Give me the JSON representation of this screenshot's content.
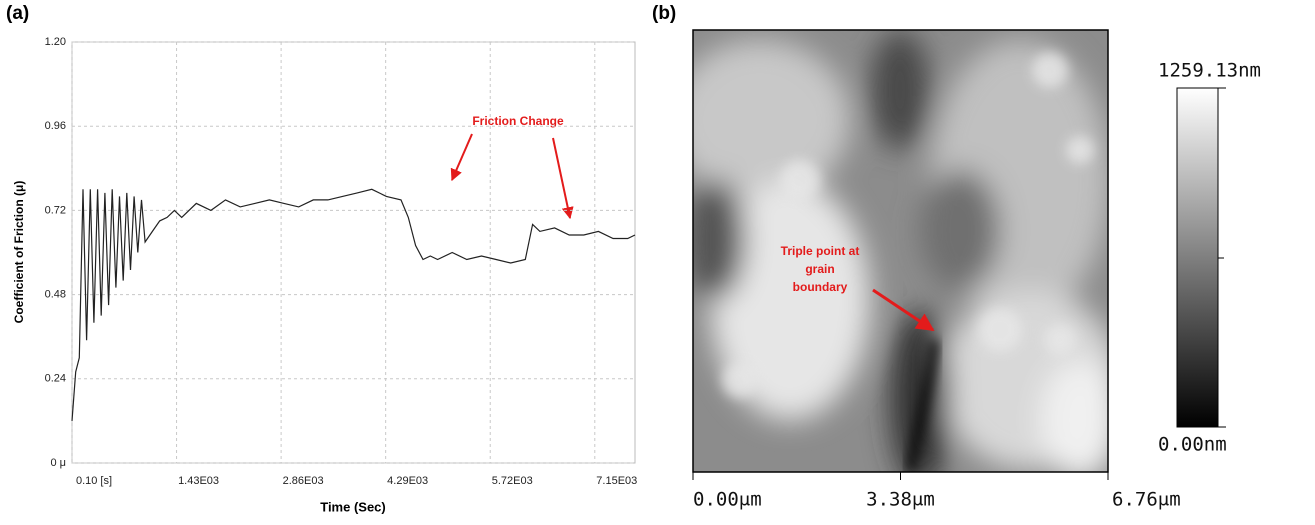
{
  "chart_data": [
    {
      "type": "line",
      "panel": "(a)",
      "x_label": "Time (Sec)",
      "y_label": "Coefficient of Friction (μ)",
      "annotation": "Friction Change",
      "color": "#222222",
      "grid": true,
      "xlim": [
        0,
        7700
      ],
      "ylim": [
        0,
        1.2
      ],
      "xticks": [
        {
          "value": 0.1,
          "label": "0.10 [s]"
        },
        {
          "value": 1430,
          "label": "1.43E03"
        },
        {
          "value": 2860,
          "label": "2.86E03"
        },
        {
          "value": 4290,
          "label": "4.29E03"
        },
        {
          "value": 5720,
          "label": "5.72E03"
        },
        {
          "value": 7150,
          "label": "7.15E03"
        }
      ],
      "yticks": [
        {
          "value": 0,
          "label": "0 μ"
        },
        0.24,
        0.48,
        0.72,
        0.96,
        {
          "value": 1.2,
          "label": "1.20"
        }
      ],
      "x": [
        0,
        50,
        100,
        150,
        200,
        250,
        300,
        350,
        400,
        450,
        500,
        550,
        600,
        650,
        700,
        750,
        800,
        850,
        900,
        950,
        1000,
        1100,
        1200,
        1300,
        1400,
        1500,
        1700,
        1900,
        2100,
        2300,
        2500,
        2700,
        2900,
        3100,
        3300,
        3500,
        3700,
        3900,
        4100,
        4300,
        4500,
        4600,
        4700,
        4800,
        4900,
        5000,
        5200,
        5400,
        5600,
        5800,
        6000,
        6200,
        6300,
        6400,
        6600,
        6800,
        7000,
        7200,
        7400,
        7600,
        7700
      ],
      "values": [
        0.12,
        0.26,
        0.3,
        0.78,
        0.35,
        0.78,
        0.4,
        0.78,
        0.42,
        0.77,
        0.45,
        0.78,
        0.5,
        0.76,
        0.52,
        0.77,
        0.55,
        0.76,
        0.6,
        0.75,
        0.63,
        0.66,
        0.69,
        0.7,
        0.72,
        0.7,
        0.74,
        0.72,
        0.75,
        0.73,
        0.74,
        0.75,
        0.74,
        0.73,
        0.75,
        0.75,
        0.76,
        0.77,
        0.78,
        0.76,
        0.75,
        0.7,
        0.62,
        0.58,
        0.59,
        0.58,
        0.6,
        0.58,
        0.59,
        0.58,
        0.57,
        0.58,
        0.68,
        0.66,
        0.67,
        0.65,
        0.65,
        0.66,
        0.64,
        0.64,
        0.65
      ]
    },
    {
      "type": "image",
      "panel": "(b)",
      "annotation": [
        "Triple point at",
        "grain",
        "boundary"
      ],
      "xlim": [
        0,
        6.76
      ],
      "xticks": [
        {
          "value": 0,
          "label": "0.00μm"
        },
        {
          "value": 3.38,
          "label": "3.38μm"
        },
        {
          "value": 6.76,
          "label": "6.76μm"
        }
      ],
      "colorbar_lim": [
        0,
        1259.13
      ],
      "colorbar_ticks": [
        {
          "value": 0,
          "label": "0.00nm"
        },
        {
          "value": 1259.13,
          "label": "1259.13nm"
        }
      ]
    }
  ]
}
